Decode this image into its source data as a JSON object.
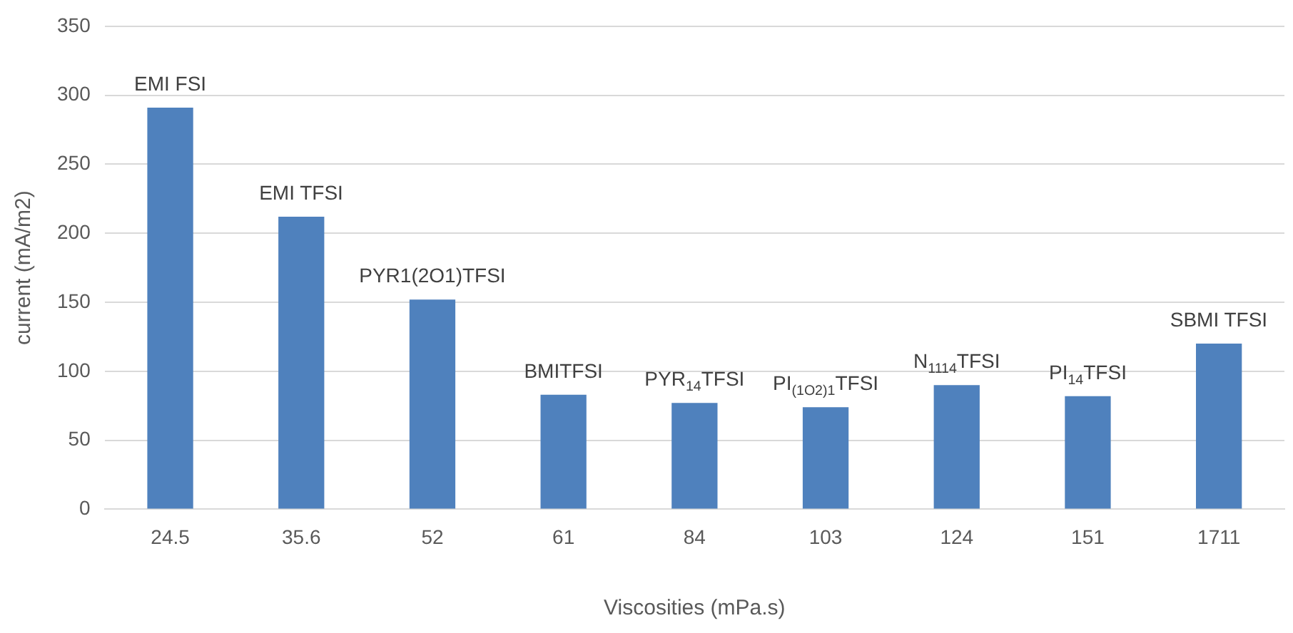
{
  "chart_data": {
    "type": "bar",
    "xlabel": "Viscosities (mPa.s)",
    "ylabel": "current (mA/m2)",
    "categories": [
      "24.5",
      "35.6",
      "52",
      "61",
      "84",
      "103",
      "124",
      "151",
      "1711"
    ],
    "values": [
      291,
      212,
      152,
      83,
      77,
      74,
      90,
      82,
      120
    ],
    "color": "#4f81bd",
    "ylim": [
      0,
      350
    ],
    "yticks": [
      0,
      50,
      100,
      150,
      200,
      250,
      300,
      350
    ],
    "grid": "y",
    "annotations": [
      {
        "text": "EMI FSI",
        "x": "24.5",
        "y": 291
      },
      {
        "text": "EMI TFSI",
        "x": "35.6",
        "y": 212
      },
      {
        "text": "PYR1(2O1)TFSI",
        "x": "52",
        "y": 152
      },
      {
        "text": "BMITFSI",
        "x": "61",
        "y": 83
      },
      {
        "text": "PYR$_{14}$TFSI",
        "x": "84",
        "y": 77
      },
      {
        "text": "PI$_{(1O2)1}$TFSI",
        "x": "103",
        "y": 74
      },
      {
        "text": "N$_{1114}$TFSI",
        "x": "124",
        "y": 90
      },
      {
        "text": "PI$_{14}$TFSI",
        "x": "151",
        "y": 82
      },
      {
        "text": "SBMI TFSI",
        "x": "1711",
        "y": 120
      }
    ]
  }
}
